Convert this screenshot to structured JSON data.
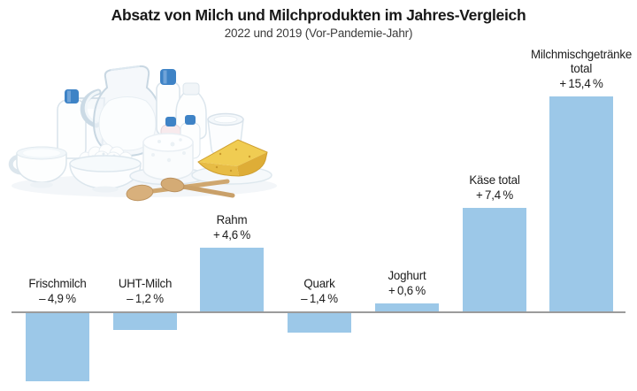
{
  "chart_data": {
    "type": "bar",
    "title": "Absatz von Milch und Milchprodukten im Jahres-Vergleich",
    "subtitle": "2022 und 2019 (Vor-Pandemie-Jahr)",
    "unit": "%",
    "categories": [
      "Frischmilch",
      "UHT-Milch",
      "Rahm",
      "Quark",
      "Joghurt",
      "Käse total",
      "Milchmischgetränke total"
    ],
    "values": [
      -4.9,
      -1.2,
      4.6,
      -1.4,
      0.6,
      7.4,
      15.4
    ],
    "bar_labels": [
      [
        "Frischmilch",
        "– 4,9 %"
      ],
      [
        "UHT-Milch",
        "– 1,2 %"
      ],
      [
        "Rahm",
        "+ 4,6 %"
      ],
      [
        "Quark",
        "– 1,4 %"
      ],
      [
        "Joghurt",
        "+ 0,6 %"
      ],
      [
        "Käse total",
        "+ 7,4 %"
      ],
      [
        "Milchmischgetränke",
        "total",
        "+ 15,4 %"
      ]
    ],
    "bar_color": "#9CC8E8",
    "baseline_color": "#9B9B9B",
    "text_color": "#1C1C1C",
    "ylim": [
      -6,
      16
    ],
    "baseline_value": 0,
    "grid": false,
    "legend": false
  },
  "illustration": {
    "name": "dairy-products-photo"
  }
}
